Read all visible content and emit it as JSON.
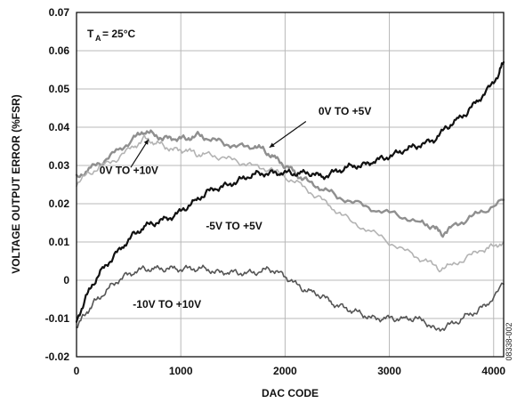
{
  "chart_data": {
    "type": "line",
    "xlabel": "DAC CODE",
    "ylabel": "VOLTAGE OUTPUT ERROR (%FSR)",
    "xlim": [
      0,
      4096
    ],
    "ylim": [
      -0.02,
      0.07
    ],
    "x_ticks": [
      0,
      1000,
      2000,
      3000,
      4000
    ],
    "y_ticks": [
      -0.02,
      -0.01,
      0,
      0.01,
      0.02,
      0.03,
      0.04,
      0.05,
      0.06,
      0.07
    ],
    "x_tick_labels": [
      "0",
      "1000",
      "2000",
      "3000",
      "4000"
    ],
    "y_tick_labels": [
      "-0.02",
      "-0.01",
      "0",
      "0.01",
      "0.02",
      "0.03",
      "0.04",
      "0.05",
      "0.06",
      "0.07"
    ],
    "grid": true,
    "temperature_label": "TA = 25°C",
    "side_note": "08338-002",
    "series": [
      {
        "name": "0V TO +5V",
        "color": "#8f8f8f",
        "points": [
          [
            0,
            0.027
          ],
          [
            120,
            0.029
          ],
          [
            250,
            0.031
          ],
          [
            400,
            0.034
          ],
          [
            550,
            0.037
          ],
          [
            650,
            0.039
          ],
          [
            750,
            0.038
          ],
          [
            850,
            0.037
          ],
          [
            950,
            0.037
          ],
          [
            1050,
            0.037
          ],
          [
            1150,
            0.038
          ],
          [
            1250,
            0.037
          ],
          [
            1400,
            0.036
          ],
          [
            1550,
            0.035
          ],
          [
            1700,
            0.035
          ],
          [
            1800,
            0.034
          ],
          [
            1900,
            0.032
          ],
          [
            2000,
            0.03
          ],
          [
            2100,
            0.028
          ],
          [
            2200,
            0.026
          ],
          [
            2350,
            0.024
          ],
          [
            2500,
            0.022
          ],
          [
            2700,
            0.02
          ],
          [
            2900,
            0.018
          ],
          [
            3100,
            0.017
          ],
          [
            3300,
            0.015
          ],
          [
            3420,
            0.014
          ],
          [
            3500,
            0.012
          ],
          [
            3600,
            0.014
          ],
          [
            3750,
            0.016
          ],
          [
            3900,
            0.018
          ],
          [
            4096,
            0.021
          ]
        ]
      },
      {
        "name": "0V TO +10V",
        "color": "#b3b3b3",
        "points": [
          [
            0,
            0.025
          ],
          [
            120,
            0.028
          ],
          [
            250,
            0.03
          ],
          [
            400,
            0.032
          ],
          [
            550,
            0.035
          ],
          [
            650,
            0.037
          ],
          [
            750,
            0.036
          ],
          [
            850,
            0.035
          ],
          [
            950,
            0.034
          ],
          [
            1050,
            0.034
          ],
          [
            1150,
            0.033
          ],
          [
            1250,
            0.033
          ],
          [
            1400,
            0.032
          ],
          [
            1550,
            0.031
          ],
          [
            1700,
            0.03
          ],
          [
            1850,
            0.029
          ],
          [
            2000,
            0.027
          ],
          [
            2150,
            0.025
          ],
          [
            2300,
            0.022
          ],
          [
            2450,
            0.019
          ],
          [
            2600,
            0.016
          ],
          [
            2800,
            0.013
          ],
          [
            3000,
            0.01
          ],
          [
            3200,
            0.007
          ],
          [
            3350,
            0.005
          ],
          [
            3480,
            0.003
          ],
          [
            3600,
            0.004
          ],
          [
            3750,
            0.006
          ],
          [
            3900,
            0.008
          ],
          [
            4000,
            0.009
          ],
          [
            4096,
            0.01
          ]
        ]
      },
      {
        "name": "-5V TO +5V",
        "color": "#111111",
        "points": [
          [
            0,
            -0.011
          ],
          [
            80,
            -0.005
          ],
          [
            160,
            -0.001
          ],
          [
            250,
            0.003
          ],
          [
            350,
            0.006
          ],
          [
            450,
            0.009
          ],
          [
            550,
            0.012
          ],
          [
            650,
            0.014
          ],
          [
            750,
            0.015
          ],
          [
            850,
            0.016
          ],
          [
            950,
            0.017
          ],
          [
            1050,
            0.019
          ],
          [
            1150,
            0.021
          ],
          [
            1250,
            0.023
          ],
          [
            1350,
            0.024
          ],
          [
            1450,
            0.025
          ],
          [
            1550,
            0.026
          ],
          [
            1650,
            0.027
          ],
          [
            1750,
            0.028
          ],
          [
            1850,
            0.028
          ],
          [
            1950,
            0.028
          ],
          [
            2050,
            0.028
          ],
          [
            2150,
            0.028
          ],
          [
            2250,
            0.028
          ],
          [
            2350,
            0.027
          ],
          [
            2450,
            0.028
          ],
          [
            2550,
            0.029
          ],
          [
            2650,
            0.03
          ],
          [
            2750,
            0.03
          ],
          [
            2850,
            0.031
          ],
          [
            2950,
            0.032
          ],
          [
            3050,
            0.033
          ],
          [
            3150,
            0.034
          ],
          [
            3250,
            0.035
          ],
          [
            3350,
            0.036
          ],
          [
            3450,
            0.037
          ],
          [
            3550,
            0.04
          ],
          [
            3650,
            0.042
          ],
          [
            3750,
            0.044
          ],
          [
            3850,
            0.047
          ],
          [
            3950,
            0.05
          ],
          [
            4050,
            0.054
          ],
          [
            4096,
            0.057
          ]
        ]
      },
      {
        "name": "-10V TO +10V",
        "color": "#555555",
        "points": [
          [
            0,
            -0.012
          ],
          [
            80,
            -0.009
          ],
          [
            160,
            -0.006
          ],
          [
            250,
            -0.004
          ],
          [
            350,
            -0.001
          ],
          [
            450,
            0.001
          ],
          [
            550,
            0.002
          ],
          [
            650,
            0.003
          ],
          [
            750,
            0.003
          ],
          [
            850,
            0.003
          ],
          [
            950,
            0.003
          ],
          [
            1050,
            0.003
          ],
          [
            1150,
            0.003
          ],
          [
            1250,
            0.003
          ],
          [
            1350,
            0.002
          ],
          [
            1450,
            0.002
          ],
          [
            1550,
            0.002
          ],
          [
            1650,
            0.002
          ],
          [
            1750,
            0.002
          ],
          [
            1850,
            0.003
          ],
          [
            1950,
            0.002
          ],
          [
            2050,
            0.0
          ],
          [
            2150,
            -0.002
          ],
          [
            2250,
            -0.003
          ],
          [
            2350,
            -0.004
          ],
          [
            2450,
            -0.006
          ],
          [
            2550,
            -0.007
          ],
          [
            2650,
            -0.008
          ],
          [
            2750,
            -0.009
          ],
          [
            2850,
            -0.01
          ],
          [
            2950,
            -0.01
          ],
          [
            3050,
            -0.01
          ],
          [
            3150,
            -0.01
          ],
          [
            3250,
            -0.01
          ],
          [
            3350,
            -0.011
          ],
          [
            3450,
            -0.013
          ],
          [
            3550,
            -0.012
          ],
          [
            3650,
            -0.011
          ],
          [
            3750,
            -0.009
          ],
          [
            3850,
            -0.008
          ],
          [
            3950,
            -0.006
          ],
          [
            4096,
            -0.001
          ]
        ]
      }
    ],
    "annotations": [
      {
        "id": "a1",
        "text": "0V TO +5V",
        "x": 2320,
        "y": 0.0432
      },
      {
        "id": "a2",
        "text": "0V TO +10V",
        "x": 220,
        "y": 0.0278
      },
      {
        "id": "a3",
        "text": "-5V TO +5V",
        "x": 1240,
        "y": 0.0133
      },
      {
        "id": "a4",
        "text": "-10V TO +10V",
        "x": 540,
        "y": -0.0072
      }
    ]
  }
}
